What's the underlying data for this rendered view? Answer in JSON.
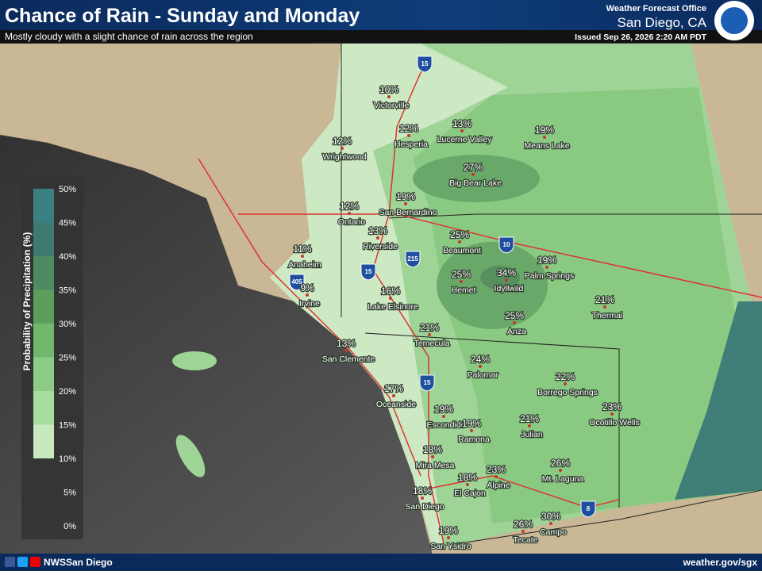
{
  "header": {
    "title": "Chance of Rain - Sunday and Monday",
    "subtitle": "Mostly cloudy with a slight chance of rain across the region",
    "office": "Weather Forecast Office",
    "city": "San Diego, CA",
    "issued": "Issued Sep 26, 2026 2:20 AM PDT"
  },
  "legend": {
    "title": "Probability of Precipitation (%)",
    "labels": [
      "50%",
      "45%",
      "40%",
      "35%",
      "30%",
      "25%",
      "20%",
      "15%",
      "10%",
      "5%",
      "0%"
    ]
  },
  "highways": [
    "15",
    "10",
    "215",
    "15",
    "405",
    "15",
    "8"
  ],
  "cities": [
    {
      "name": "Victorville",
      "pct": "10%"
    },
    {
      "name": "Hesperia",
      "pct": "12%"
    },
    {
      "name": "Lucerne Valley",
      "pct": "13%"
    },
    {
      "name": "Means Lake",
      "pct": "19%"
    },
    {
      "name": "Wrightwood",
      "pct": "12%"
    },
    {
      "name": "Big Bear Lake",
      "pct": "27%"
    },
    {
      "name": "San Bernardino",
      "pct": "19%"
    },
    {
      "name": "Ontario",
      "pct": "12%"
    },
    {
      "name": "Riverside",
      "pct": "13%"
    },
    {
      "name": "Beaumont",
      "pct": "25%"
    },
    {
      "name": "Anaheim",
      "pct": "11%"
    },
    {
      "name": "Palm Springs",
      "pct": "19%"
    },
    {
      "name": "Hemet",
      "pct": "25%"
    },
    {
      "name": "Idyllwild",
      "pct": "34%"
    },
    {
      "name": "Irvine",
      "pct": "9%"
    },
    {
      "name": "Lake Elsinore",
      "pct": "16%"
    },
    {
      "name": "Thermal",
      "pct": "21%"
    },
    {
      "name": "Anza",
      "pct": "25%"
    },
    {
      "name": "Temecula",
      "pct": "21%"
    },
    {
      "name": "San Clemente",
      "pct": "13%"
    },
    {
      "name": "Palomar",
      "pct": "24%"
    },
    {
      "name": "Borrego Springs",
      "pct": "22%"
    },
    {
      "name": "Oceanside",
      "pct": "17%"
    },
    {
      "name": "Ocotillo Wells",
      "pct": "23%"
    },
    {
      "name": "Escondido",
      "pct": "19%"
    },
    {
      "name": "Ramona",
      "pct": "19%"
    },
    {
      "name": "Julian",
      "pct": "21%"
    },
    {
      "name": "Mira Mesa",
      "pct": "18%"
    },
    {
      "name": "Alpine",
      "pct": "23%"
    },
    {
      "name": "Mt. Laguna",
      "pct": "26%"
    },
    {
      "name": "El Cajon",
      "pct": "18%"
    },
    {
      "name": "San Diego",
      "pct": "18%"
    },
    {
      "name": "Campo",
      "pct": "30%"
    },
    {
      "name": "Tecate",
      "pct": "26%"
    },
    {
      "name": "San Ysidro",
      "pct": "19%"
    }
  ],
  "footer": {
    "social": "NWSSan Diego",
    "url": "weather.gov/sgx"
  }
}
